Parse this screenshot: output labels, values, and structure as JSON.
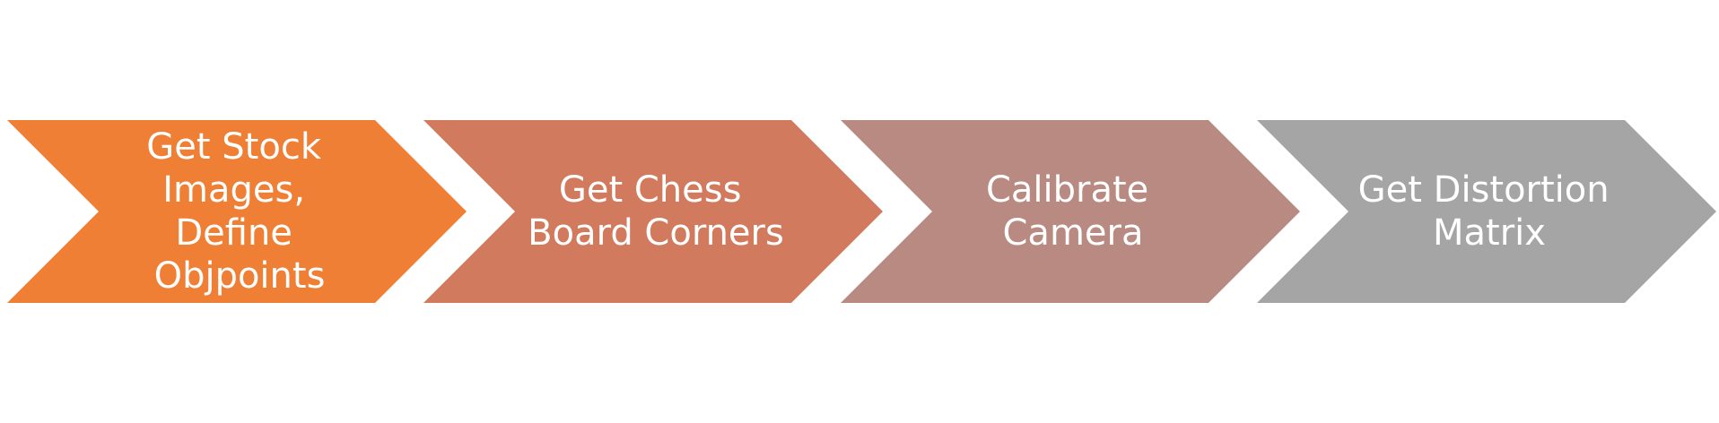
{
  "process": {
    "steps": [
      {
        "lines": [
          "Get Stock",
          "Images,",
          "Define",
          "Objpoints"
        ],
        "color": "#ef7f34"
      },
      {
        "lines": [
          "Get Chess",
          "Board Corners"
        ],
        "color": "#d27a5d"
      },
      {
        "lines": [
          "Calibrate",
          "Camera"
        ],
        "color": "#b98a81"
      },
      {
        "lines": [
          "Get Distortion",
          "Matrix"
        ],
        "color": "#a5a5a5"
      }
    ]
  }
}
